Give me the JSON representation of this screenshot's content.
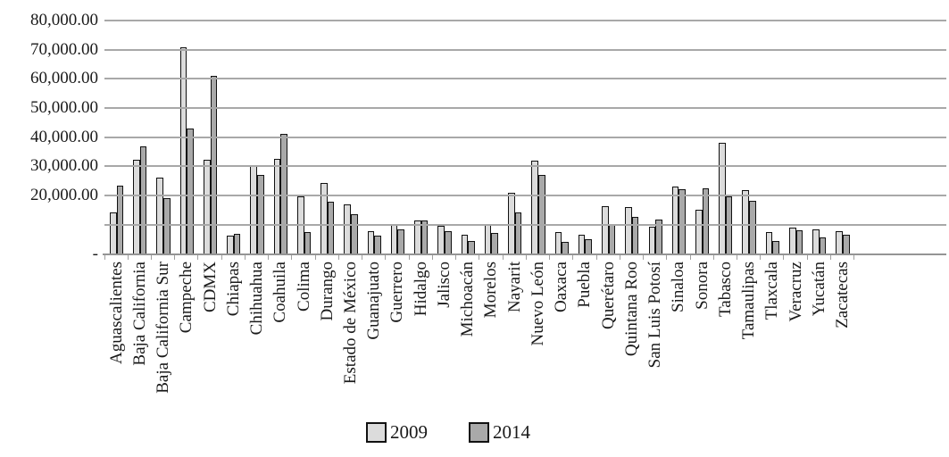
{
  "chart_data": {
    "type": "bar",
    "title": "",
    "categories": [
      "Aguascalientes",
      "Baja California",
      "Baja California Sur",
      "Campeche",
      "CDMX",
      "Chiapas",
      "Chihuahua",
      "Coahuila",
      "Colima",
      "Durango",
      "Estado de México",
      "Guanajuato",
      "Guerrero",
      "Hidalgo",
      "Jalisco",
      "Michoacán",
      "Morelos",
      "Nayarit",
      "Nuevo León",
      "Oaxaca",
      "Puebla",
      "Querétaro",
      "Quintana Roo",
      "San Luis Potosí",
      "Sinaloa",
      "Sonora",
      "Tabasco",
      "Tamaulipas",
      "Tlaxcala",
      "Veracruz",
      "Yucatán",
      "Zacatecas"
    ],
    "series": [
      {
        "name": "2009",
        "color": "#dcdcdc",
        "values": [
          14300,
          32400,
          26300,
          70800,
          32400,
          6400,
          30000,
          32700,
          19800,
          24400,
          17000,
          7800,
          9900,
          11600,
          9700,
          6600,
          10400,
          20900,
          32100,
          7600,
          6600,
          16300,
          16000,
          9200,
          23200,
          15100,
          38200,
          21900,
          7600,
          8900,
          8500,
          7900
        ]
      },
      {
        "name": "2014",
        "color": "#a9a9a9",
        "values": [
          23300,
          37000,
          19200,
          43000,
          61000,
          6900,
          27000,
          41200,
          7600,
          17800,
          13700,
          6400,
          8300,
          11400,
          7800,
          4500,
          7300,
          14100,
          27000,
          4100,
          5100,
          10000,
          12700,
          11900,
          22200,
          22400,
          19800,
          18300,
          4300,
          8200,
          5700,
          6600
        ]
      }
    ],
    "xlabel": "",
    "ylabel": "",
    "y_axis": {
      "min": 0,
      "max": 80000,
      "tick_interval": 10000,
      "tick_labels": [
        "80,000.00",
        "70,000.00",
        "60,000.00",
        "50,000.00",
        "40,000.00",
        "30,000.00",
        "20,000.00",
        "-"
      ],
      "tick_values": [
        80000,
        70000,
        60000,
        50000,
        40000,
        30000,
        20000,
        0
      ],
      "note_unlabeled_gridline_at": 10000
    },
    "grid": true,
    "grid_color": "#a8a8a8",
    "bar_border_color": "#111111",
    "text_color": "#1a1a1a",
    "legend_position": "bottom-center",
    "x_labels_rotation_degrees": 90
  }
}
